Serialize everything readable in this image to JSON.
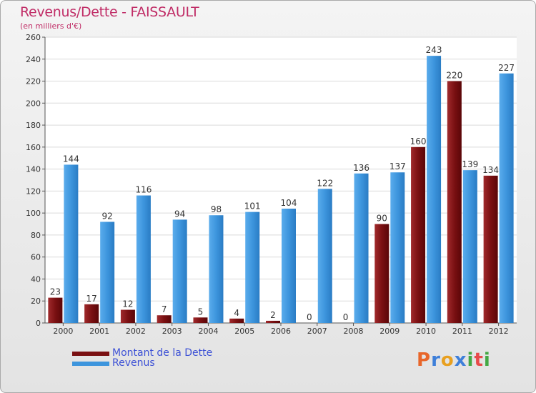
{
  "chart_data": {
    "type": "bar",
    "title": "Revenus/Dette - FAISSAULT",
    "subtitle": "(en milliers d'€)",
    "categories": [
      "2000",
      "2001",
      "2002",
      "2003",
      "2004",
      "2005",
      "2006",
      "2007",
      "2008",
      "2009",
      "2010",
      "2011",
      "2012"
    ],
    "series": [
      {
        "name": "Montant de la Dette",
        "color": "#7a1012",
        "values": [
          23,
          17,
          12,
          7,
          5,
          4,
          2,
          0,
          0,
          90,
          160,
          220,
          134
        ]
      },
      {
        "name": "Revenus",
        "color": "#3d95dd",
        "values": [
          144,
          92,
          116,
          94,
          98,
          101,
          104,
          122,
          136,
          137,
          243,
          139,
          227
        ]
      }
    ],
    "ylim": [
      0,
      260
    ],
    "yticks": [
      0,
      20,
      40,
      60,
      80,
      100,
      120,
      140,
      160,
      180,
      200,
      220,
      240,
      260
    ],
    "grid": true,
    "legend": "bottom-left"
  },
  "logo": {
    "letters": [
      "P",
      "r",
      "o",
      "x",
      "i",
      "t",
      "i"
    ],
    "colors": [
      "#e8662a",
      "#3e7fd9",
      "#e8a020",
      "#3e7fd9",
      "#44a844",
      "#e84a4a",
      "#44a844"
    ]
  }
}
